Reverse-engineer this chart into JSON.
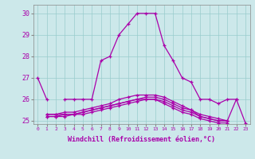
{
  "xlabel": "Windchill (Refroidissement éolien,°C)",
  "hours": [
    0,
    1,
    2,
    3,
    4,
    5,
    6,
    7,
    8,
    9,
    10,
    11,
    12,
    13,
    14,
    15,
    16,
    17,
    18,
    19,
    20,
    21,
    22,
    23
  ],
  "line1": [
    27.0,
    26.0,
    null,
    26.0,
    26.0,
    26.0,
    26.0,
    27.8,
    28.0,
    29.0,
    29.5,
    30.0,
    30.0,
    30.0,
    28.5,
    27.8,
    27.0,
    26.8,
    26.0,
    26.0,
    25.8,
    26.0,
    26.0,
    null
  ],
  "line2": [
    null,
    25.3,
    25.3,
    25.3,
    25.3,
    25.4,
    25.5,
    25.6,
    25.7,
    25.8,
    25.9,
    26.0,
    26.0,
    26.0,
    25.9,
    25.7,
    25.5,
    25.4,
    25.2,
    25.1,
    25.0,
    25.0,
    null,
    null
  ],
  "line3": [
    null,
    25.2,
    25.2,
    25.3,
    25.3,
    25.4,
    25.5,
    25.6,
    25.7,
    25.8,
    25.9,
    26.0,
    26.1,
    26.1,
    26.0,
    25.8,
    25.6,
    25.5,
    25.3,
    25.2,
    25.1,
    25.0,
    null,
    null
  ],
  "line4": [
    null,
    25.2,
    25.2,
    25.2,
    25.3,
    25.3,
    25.4,
    25.5,
    25.6,
    25.7,
    25.8,
    25.9,
    26.0,
    26.0,
    25.8,
    25.6,
    25.4,
    25.3,
    25.1,
    25.0,
    24.9,
    24.9,
    null,
    null
  ],
  "line5": [
    null,
    25.3,
    25.3,
    25.4,
    25.4,
    25.5,
    25.6,
    25.7,
    25.8,
    26.0,
    26.1,
    26.2,
    26.2,
    26.2,
    26.1,
    25.9,
    25.7,
    25.5,
    25.2,
    25.1,
    25.0,
    25.0,
    26.0,
    24.9
  ],
  "bg_color": "#cce8ea",
  "line_color": "#aa00aa",
  "grid_color": "#99cccc",
  "yticks": [
    25,
    26,
    27,
    28,
    29,
    30
  ],
  "marker": "+"
}
